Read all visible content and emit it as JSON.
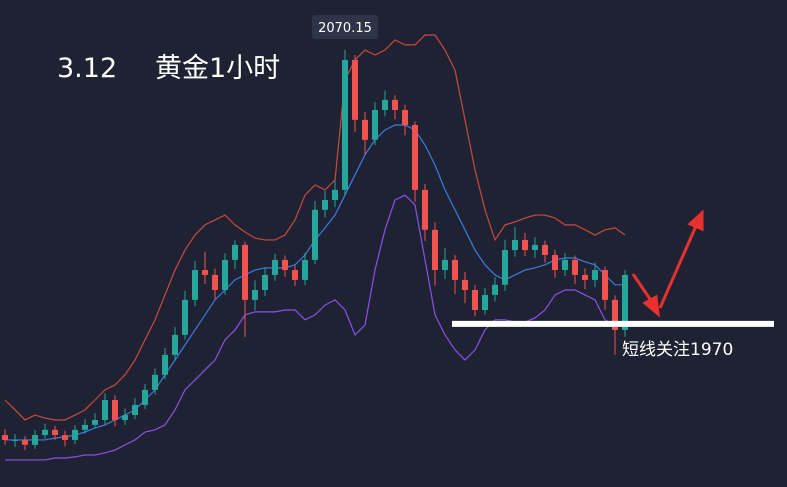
{
  "chart_data": {
    "type": "candlestick",
    "title": "3.12",
    "subtitle": "黄金1小时",
    "annotation": "短线关注1970",
    "level": 1970,
    "ylim": [
      1910.4,
      2088.4
    ],
    "up_color": "#26a69a",
    "down_color": "#ef5350",
    "open": [
      1929.4,
      1927.6,
      1927.6,
      1925.8,
      1929.4,
      1931.3,
      1929.4,
      1927.6,
      1931.3,
      1933.1,
      1934.9,
      1942.2,
      1934.9,
      1936.7,
      1940.4,
      1945.9,
      1951.4,
      1958.7,
      1966.0,
      1978.8,
      1989.7,
      1987.9,
      1982.4,
      1993.4,
      1998.9,
      1978.8,
      1982.4,
      1987.9,
      1993.4,
      1989.7,
      1986.1,
      1993.4,
      2011.7,
      2015.3,
      2019.0,
      2066.5,
      2044.6,
      2037.3,
      2048.2,
      2051.9,
      2048.2,
      2042.7,
      2019.0,
      2004.4,
      1989.7,
      1993.4,
      1986.1,
      1982.4,
      1975.1,
      1980.6,
      1984.3,
      1997.0,
      2000.7,
      1997.0,
      1998.9,
      1995.2,
      1989.7,
      1993.4,
      1987.9,
      1986.1,
      1989.7,
      1978.8,
      1967.8
    ],
    "high": [
      1931.5,
      1929.8,
      1929.0,
      1931.2,
      1933.5,
      1932.8,
      1930.9,
      1933.0,
      1935.2,
      1937.4,
      1944.6,
      1943.9,
      1939.1,
      1942.8,
      1948.0,
      1953.7,
      1961.2,
      1968.9,
      1982.1,
      1993.0,
      1996.4,
      1990.2,
      1995.8,
      2000.6,
      2000.1,
      1985.9,
      1990.3,
      1995.6,
      1995.0,
      1991.5,
      1996.0,
      2014.9,
      2018.6,
      2022.4,
      2070.15,
      2068.3,
      2047.5,
      2051.0,
      2055.3,
      2053.6,
      2050.1,
      2044.0,
      2021.2,
      2007.1,
      1997.8,
      1995.2,
      1989.0,
      1984.3,
      1983.2,
      1987.1,
      2000.8,
      2005.4,
      2003.3,
      2001.7,
      2000.5,
      1997.1,
      1995.9,
      1995.0,
      1990.3,
      1992.4,
      1991.0,
      1980.5,
      1989.6
    ],
    "low": [
      1925.9,
      1925.1,
      1923.9,
      1924.4,
      1928.0,
      1927.5,
      1925.2,
      1926.1,
      1929.9,
      1931.8,
      1933.2,
      1932.6,
      1933.0,
      1935.1,
      1938.9,
      1944.2,
      1949.8,
      1956.5,
      1964.3,
      1976.5,
      1984.6,
      1979.1,
      1980.7,
      1990.1,
      1965.2,
      1975.0,
      1980.1,
      1985.8,
      1987.3,
      1983.9,
      1984.2,
      1991.8,
      2008.9,
      2012.8,
      2016.9,
      2040.2,
      2031.8,
      2035.4,
      2045.9,
      2044.8,
      2038.9,
      2014.6,
      2000.3,
      1984.0,
      1986.5,
      1980.9,
      1977.6,
      1972.8,
      1973.5,
      1978.2,
      1982.1,
      1994.6,
      1994.8,
      1994.2,
      1992.4,
      1986.9,
      1987.5,
      1984.6,
      1982.7,
      1983.5,
      1975.2,
      1958.7,
      1965.3
    ],
    "close": [
      1927.6,
      1927.6,
      1925.8,
      1929.4,
      1931.3,
      1929.4,
      1927.6,
      1931.3,
      1933.1,
      1934.9,
      1942.2,
      1934.9,
      1936.7,
      1940.4,
      1945.9,
      1951.4,
      1958.7,
      1966.0,
      1978.8,
      1989.7,
      1987.9,
      1982.4,
      1993.4,
      1998.9,
      1978.8,
      1982.4,
      1987.9,
      1993.4,
      1989.7,
      1986.1,
      1993.4,
      2011.7,
      2015.3,
      2019.0,
      2066.5,
      2044.6,
      2037.3,
      2048.2,
      2051.9,
      2048.2,
      2042.7,
      2019.0,
      2004.4,
      1989.7,
      1993.4,
      1986.1,
      1982.4,
      1975.1,
      1980.6,
      1984.3,
      1997.0,
      2000.7,
      1997.0,
      1998.9,
      1995.2,
      1989.7,
      1993.4,
      1987.9,
      1986.1,
      1989.7,
      1978.8,
      1967.8,
      1987.9
    ],
    "bands": [
      {
        "color": "#c94a3d",
        "values": [
          1942.2,
          1938.6,
          1934.9,
          1936.7,
          1935.6,
          1934.9,
          1934.9,
          1936.7,
          1938.6,
          1942.2,
          1945.9,
          1947.7,
          1951.4,
          1956.8,
          1964.2,
          1971.5,
          1980.6,
          1989.7,
          1997.0,
          2002.5,
          2006.2,
          2008.0,
          2009.8,
          2006.2,
          2003.6,
          2001.4,
          2000.7,
          2000.7,
          2002.5,
          2008.0,
          2017.1,
          2020.8,
          2019.0,
          2022.6,
          2059.2,
          2066.5,
          2070.1,
          2068.3,
          2070.1,
          2073.8,
          2072.0,
          2072.0,
          2075.6,
          2075.6,
          2070.1,
          2062.8,
          2044.6,
          2026.3,
          2011.7,
          2000.7,
          2006.2,
          2007.3,
          2008.7,
          2009.8,
          2009.8,
          2008.7,
          2006.2,
          2006.2,
          2004.4,
          2002.5,
          2004.4,
          2005.1,
          2002.5
        ]
      },
      {
        "color": "#3d7be0",
        "values": [
          1927.6,
          1927.6,
          1927.6,
          1927.6,
          1927.6,
          1928.3,
          1928.7,
          1929.4,
          1930.5,
          1932.0,
          1933.1,
          1934.9,
          1936.7,
          1938.6,
          1942.2,
          1945.9,
          1951.4,
          1956.8,
          1962.3,
          1967.8,
          1973.3,
          1978.8,
          1982.4,
          1986.1,
          1987.9,
          1989.7,
          1990.5,
          1990.5,
          1990.5,
          1991.6,
          1995.2,
          2000.7,
          2005.1,
          2009.8,
          2017.1,
          2024.5,
          2031.8,
          2037.3,
          2040.9,
          2042.7,
          2042.7,
          2040.9,
          2035.4,
          2028.1,
          2019.0,
          2011.7,
          2004.4,
          1997.0,
          1991.6,
          1987.9,
          1986.1,
          1987.9,
          1989.7,
          1990.5,
          1991.6,
          1993.4,
          1994.1,
          1994.1,
          1992.7,
          1991.6,
          1987.9,
          1984.3,
          1984.3
        ]
      },
      {
        "color": "#8b52e6",
        "values": [
          1920.3,
          1920.3,
          1920.3,
          1920.3,
          1920.3,
          1921.0,
          1921.0,
          1921.4,
          1922.1,
          1922.1,
          1922.9,
          1923.9,
          1925.8,
          1927.6,
          1930.5,
          1931.3,
          1933.1,
          1938.6,
          1945.9,
          1949.5,
          1953.2,
          1956.8,
          1964.2,
          1967.8,
          1973.3,
          1974.4,
          1974.4,
          1974.4,
          1975.1,
          1975.1,
          1971.5,
          1973.3,
          1976.9,
          1978.8,
          1975.1,
          1966.0,
          1969.6,
          1989.7,
          2004.4,
          2015.3,
          2017.1,
          2013.5,
          1993.4,
          1973.3,
          1966.0,
          1960.5,
          1956.8,
          1960.5,
          1967.8,
          1971.5,
          1971.5,
          1970.7,
          1970.7,
          1972.2,
          1975.1,
          1980.6,
          1982.4,
          1982.4,
          1980.6,
          1978.8,
          1971.5,
          1969.6,
          1969.6
        ]
      }
    ]
  }
}
